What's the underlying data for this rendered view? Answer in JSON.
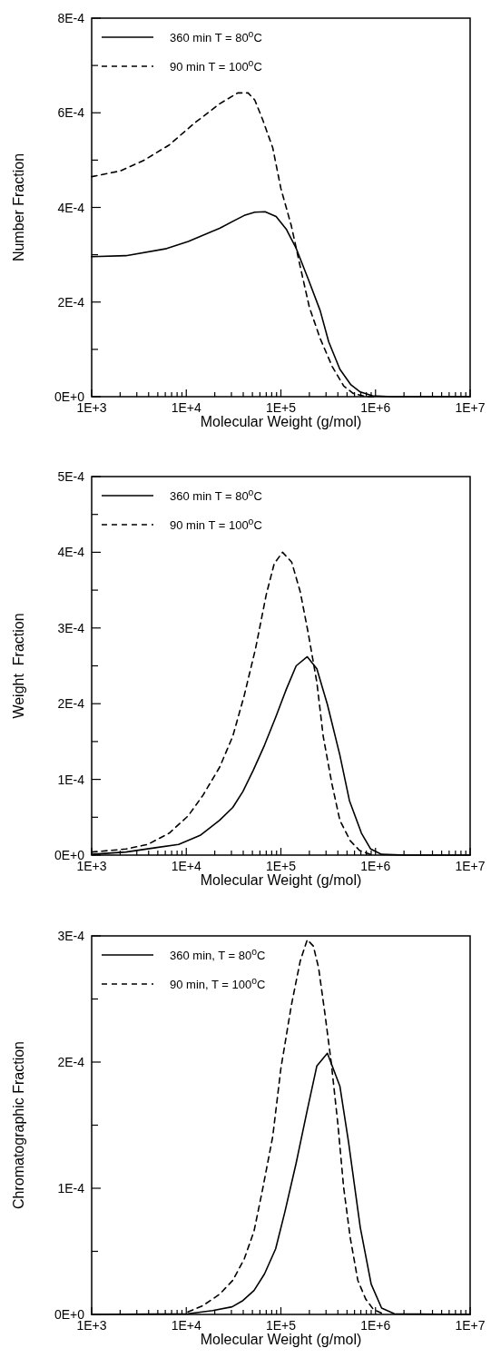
{
  "chart_data": [
    {
      "type": "line",
      "xlabel": "Molecular Weight (g/mol)",
      "ylabel": "Number Fraction",
      "log": "x",
      "legend": "top left",
      "marker": "none",
      "xlim": [
        1000,
        10000000
      ],
      "ylim": [
        0,
        0.0008
      ],
      "xticks": [
        {
          "value": 1000,
          "label": "1E+3"
        },
        {
          "value": 2000,
          "label": null
        },
        {
          "value": 3000,
          "label": null
        },
        {
          "value": 4000,
          "label": null
        },
        {
          "value": 5000,
          "label": null
        },
        {
          "value": 6000,
          "label": null
        },
        {
          "value": 7000,
          "label": null
        },
        {
          "value": 8000,
          "label": null
        },
        {
          "value": 9000,
          "label": null
        },
        {
          "value": 10000,
          "label": "1E+4"
        },
        {
          "value": 20000,
          "label": null
        },
        {
          "value": 30000,
          "label": null
        },
        {
          "value": 40000,
          "label": null
        },
        {
          "value": 50000,
          "label": null
        },
        {
          "value": 60000,
          "label": null
        },
        {
          "value": 70000,
          "label": null
        },
        {
          "value": 80000,
          "label": null
        },
        {
          "value": 90000,
          "label": null
        },
        {
          "value": 100000,
          "label": "1E+5"
        },
        {
          "value": 200000,
          "label": null
        },
        {
          "value": 300000,
          "label": null
        },
        {
          "value": 400000,
          "label": null
        },
        {
          "value": 500000,
          "label": null
        },
        {
          "value": 600000,
          "label": null
        },
        {
          "value": 700000,
          "label": null
        },
        {
          "value": 800000,
          "label": null
        },
        {
          "value": 900000,
          "label": null
        },
        {
          "value": 1000000,
          "label": "1E+6"
        },
        {
          "value": 2000000,
          "label": null
        },
        {
          "value": 3000000,
          "label": null
        },
        {
          "value": 4000000,
          "label": null
        },
        {
          "value": 5000000,
          "label": null
        },
        {
          "value": 6000000,
          "label": null
        },
        {
          "value": 7000000,
          "label": null
        },
        {
          "value": 8000000,
          "label": null
        },
        {
          "value": 9000000,
          "label": null
        },
        {
          "value": 10000000,
          "label": "1E+7"
        }
      ],
      "yticks": [
        {
          "value": 0,
          "label": "0E+0"
        },
        {
          "value": 0.0001,
          "label": null
        },
        {
          "value": 0.0002,
          "label": "2E-4"
        },
        {
          "value": 0.0003,
          "label": null
        },
        {
          "value": 0.0004,
          "label": "4E-4"
        },
        {
          "value": 0.0005,
          "label": null
        },
        {
          "value": 0.0006,
          "label": "6E-4"
        },
        {
          "value": 0.0007,
          "label": null
        },
        {
          "value": 0.0008,
          "label": "8E-4"
        }
      ],
      "series": [
        {
          "name": "360 min T = 80$^{o}$C",
          "color": "#000000",
          "line_style": "solid",
          "x": [
            1000,
            2300,
            6200,
            10500,
            22500,
            41000,
            53000,
            68000,
            89000,
            114000,
            144000,
            195000,
            260000,
            320000,
            420000,
            550000,
            690000,
            930000,
            1500000,
            10000000
          ],
          "values": [
            0.000296,
            0.000298,
            0.000313,
            0.000328,
            0.000356,
            0.000383,
            0.00039,
            0.000391,
            0.000381,
            0.000354,
            0.000315,
            0.000248,
            0.000182,
            0.000116,
            5.8e-05,
            2.5e-05,
            1e-05,
            2e-06,
            0,
            0
          ]
        },
        {
          "name": "90 min T = 100$^{o}$C",
          "color": "#000000",
          "line_style": "dashed",
          "x": [
            1000,
            2000,
            3600,
            6600,
            12000,
            22500,
            35000,
            45000,
            53000,
            64000,
            82000,
            100000,
            129000,
            160000,
            200000,
            260000,
            350000,
            460000,
            580000,
            800000,
            1000000
          ],
          "values": [
            0.000465,
            0.000477,
            0.0005,
            0.000532,
            0.000577,
            0.000619,
            0.000642,
            0.000642,
            0.000627,
            0.000586,
            0.000526,
            0.00044,
            0.000361,
            0.000275,
            0.000189,
            0.000123,
            6.3e-05,
            2.3e-05,
            7e-06,
            0,
            0
          ]
        }
      ]
    },
    {
      "type": "line",
      "xlabel": "Molecular Weight (g/mol)",
      "ylabel": "Weight  Fraction",
      "log": "x",
      "legend": "top left",
      "marker": "none",
      "xlim": [
        1000,
        10000000
      ],
      "ylim": [
        0,
        0.0005
      ],
      "xticks": [
        {
          "value": 1000,
          "label": "1E+3"
        },
        {
          "value": 2000,
          "label": null
        },
        {
          "value": 3000,
          "label": null
        },
        {
          "value": 4000,
          "label": null
        },
        {
          "value": 5000,
          "label": null
        },
        {
          "value": 6000,
          "label": null
        },
        {
          "value": 7000,
          "label": null
        },
        {
          "value": 8000,
          "label": null
        },
        {
          "value": 9000,
          "label": null
        },
        {
          "value": 10000,
          "label": "1E+4"
        },
        {
          "value": 20000,
          "label": null
        },
        {
          "value": 30000,
          "label": null
        },
        {
          "value": 40000,
          "label": null
        },
        {
          "value": 50000,
          "label": null
        },
        {
          "value": 60000,
          "label": null
        },
        {
          "value": 70000,
          "label": null
        },
        {
          "value": 80000,
          "label": null
        },
        {
          "value": 90000,
          "label": null
        },
        {
          "value": 100000,
          "label": "1E+5"
        },
        {
          "value": 200000,
          "label": null
        },
        {
          "value": 300000,
          "label": null
        },
        {
          "value": 400000,
          "label": null
        },
        {
          "value": 500000,
          "label": null
        },
        {
          "value": 600000,
          "label": null
        },
        {
          "value": 700000,
          "label": null
        },
        {
          "value": 800000,
          "label": null
        },
        {
          "value": 900000,
          "label": null
        },
        {
          "value": 1000000,
          "label": "1E+6"
        },
        {
          "value": 2000000,
          "label": null
        },
        {
          "value": 3000000,
          "label": null
        },
        {
          "value": 4000000,
          "label": null
        },
        {
          "value": 5000000,
          "label": null
        },
        {
          "value": 6000000,
          "label": null
        },
        {
          "value": 7000000,
          "label": null
        },
        {
          "value": 8000000,
          "label": null
        },
        {
          "value": 9000000,
          "label": null
        },
        {
          "value": 10000000,
          "label": "1E+7"
        }
      ],
      "yticks": [
        {
          "value": 0,
          "label": "0E+0"
        },
        {
          "value": 5e-05,
          "label": null
        },
        {
          "value": 0.0001,
          "label": "1E-4"
        },
        {
          "value": 0.00015,
          "label": null
        },
        {
          "value": 0.0002,
          "label": "2E-4"
        },
        {
          "value": 0.00025,
          "label": null
        },
        {
          "value": 0.0003,
          "label": "3E-4"
        },
        {
          "value": 0.00035,
          "label": null
        },
        {
          "value": 0.0004,
          "label": "4E-4"
        },
        {
          "value": 0.00045,
          "label": null
        },
        {
          "value": 0.0005,
          "label": "5E-4"
        }
      ],
      "series": [
        {
          "name": "360 min T = 80$^{o}$C",
          "color": "#000000",
          "line_style": "solid",
          "x": [
            1000,
            2300,
            4900,
            8300,
            14000,
            22500,
            31000,
            39700,
            51000,
            67000,
            88000,
            114000,
            145000,
            190000,
            240000,
            310000,
            420000,
            530000,
            710000,
            890000,
            1160000,
            2100000,
            10000000
          ],
          "values": [
            1e-06,
            4e-06,
            1e-05,
            1.4e-05,
            2.6e-05,
            4.6e-05,
            6.3e-05,
            8.4e-05,
            0.000112,
            0.000145,
            0.000182,
            0.000219,
            0.00025,
            0.000262,
            0.000246,
            0.000199,
            0.000132,
            7.2e-05,
            2.9e-05,
            8e-06,
            1e-06,
            0,
            0
          ]
        },
        {
          "name": "90 min T = 100$^{o}$C",
          "color": "#000000",
          "line_style": "dashed",
          "x": [
            1000,
            2300,
            3900,
            6600,
            10500,
            15000,
            22500,
            31000,
            41000,
            54000,
            70000,
            85000,
            104000,
            130000,
            160000,
            194000,
            240000,
            280000,
            345000,
            420000,
            540000,
            680000,
            930000
          ],
          "values": [
            4e-06,
            8e-06,
            1.4e-05,
            2.9e-05,
            5.2e-05,
            7.9e-05,
            0.000116,
            0.000157,
            0.000211,
            0.000273,
            0.000344,
            0.000385,
            0.0004,
            0.000387,
            0.000348,
            0.000294,
            0.000228,
            0.000157,
            9.5e-05,
            4.6e-05,
            1.9e-05,
            6e-06,
            0
          ]
        }
      ]
    },
    {
      "type": "line",
      "xlabel": "Molecular Weight (g/mol)",
      "ylabel": "Chromatographic Fraction",
      "log": "x",
      "legend": "top left",
      "marker": "none",
      "xlim": [
        1000,
        10000000
      ],
      "ylim": [
        0,
        0.0003
      ],
      "xticks": [
        {
          "value": 1000,
          "label": "1E+3"
        },
        {
          "value": 2000,
          "label": null
        },
        {
          "value": 3000,
          "label": null
        },
        {
          "value": 4000,
          "label": null
        },
        {
          "value": 5000,
          "label": null
        },
        {
          "value": 6000,
          "label": null
        },
        {
          "value": 7000,
          "label": null
        },
        {
          "value": 8000,
          "label": null
        },
        {
          "value": 9000,
          "label": null
        },
        {
          "value": 10000,
          "label": "1E+4"
        },
        {
          "value": 20000,
          "label": null
        },
        {
          "value": 30000,
          "label": null
        },
        {
          "value": 40000,
          "label": null
        },
        {
          "value": 50000,
          "label": null
        },
        {
          "value": 60000,
          "label": null
        },
        {
          "value": 70000,
          "label": null
        },
        {
          "value": 80000,
          "label": null
        },
        {
          "value": 90000,
          "label": null
        },
        {
          "value": 100000,
          "label": "1E+5"
        },
        {
          "value": 200000,
          "label": null
        },
        {
          "value": 300000,
          "label": null
        },
        {
          "value": 400000,
          "label": null
        },
        {
          "value": 500000,
          "label": null
        },
        {
          "value": 600000,
          "label": null
        },
        {
          "value": 700000,
          "label": null
        },
        {
          "value": 800000,
          "label": null
        },
        {
          "value": 900000,
          "label": null
        },
        {
          "value": 1000000,
          "label": "1E+6"
        },
        {
          "value": 2000000,
          "label": null
        },
        {
          "value": 3000000,
          "label": null
        },
        {
          "value": 4000000,
          "label": null
        },
        {
          "value": 5000000,
          "label": null
        },
        {
          "value": 6000000,
          "label": null
        },
        {
          "value": 7000000,
          "label": null
        },
        {
          "value": 8000000,
          "label": null
        },
        {
          "value": 9000000,
          "label": null
        },
        {
          "value": 10000000,
          "label": "1E+7"
        }
      ],
      "yticks": [
        {
          "value": 0,
          "label": "0E+0"
        },
        {
          "value": 5e-05,
          "label": null
        },
        {
          "value": 0.0001,
          "label": "1E-4"
        },
        {
          "value": 0.00015,
          "label": null
        },
        {
          "value": 0.0002,
          "label": "2E-4"
        },
        {
          "value": 0.00025,
          "label": null
        },
        {
          "value": 0.0003,
          "label": "3E-4"
        }
      ],
      "series": [
        {
          "name": "360 min, T = 80$^{o}$C",
          "color": "#000000",
          "line_style": "solid",
          "x": [
            1000,
            10400,
            19000,
            30500,
            39700,
            52000,
            67000,
            88000,
            110000,
            145000,
            190000,
            240000,
            310000,
            420000,
            520000,
            690000,
            900000,
            1160000,
            1580000,
            10000000
          ],
          "values": [
            0,
            5e-07,
            3e-06,
            6e-06,
            1.1e-05,
            1.9e-05,
            3.2e-05,
            5.2e-05,
            8.1e-05,
            0.00012,
            0.000162,
            0.000197,
            0.000207,
            0.000181,
            0.000136,
            6.9e-05,
            2.4e-05,
            5e-06,
            5e-07,
            0
          ]
        },
        {
          "name": "90 min, T = 100$^{o}$C",
          "color": "#000000",
          "line_style": "dashed",
          "x": [
            10400,
            15000,
            22500,
            31000,
            41000,
            52000,
            64000,
            82000,
            100000,
            129000,
            160000,
            190000,
            220000,
            250000,
            290000,
            340000,
            400000,
            460000,
            540000,
            650000,
            790000,
            950000,
            1200000
          ],
          "values": [
            2e-06,
            7e-06,
            1.6e-05,
            2.7e-05,
            4.4e-05,
            6.6e-05,
            9.9e-05,
            0.000141,
            0.000195,
            0.000245,
            0.00028,
            0.000297,
            0.000292,
            0.000275,
            0.00024,
            0.0002,
            0.000151,
            0.000101,
            6.1e-05,
            2.7e-05,
            1.2e-05,
            4e-06,
            5e-07
          ]
        }
      ]
    }
  ]
}
